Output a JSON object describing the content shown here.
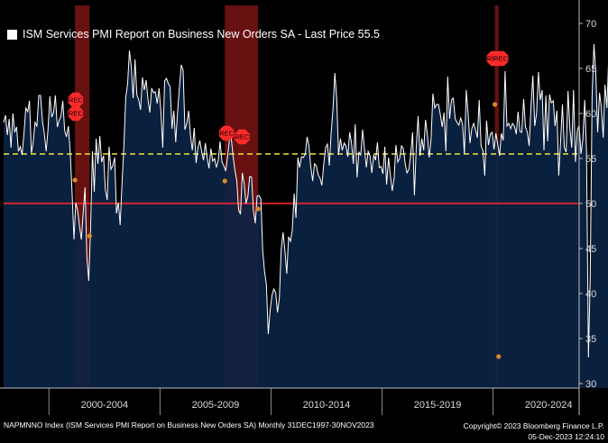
{
  "legend": {
    "label": "ISM Services PMI Report on Business New Orders SA - Last Price 55.5"
  },
  "footer": {
    "left": "NAPMNNO Index (ISM Services PMI Report on Business New Orders SA)  Monthly 31DEC1997-30NOV2023",
    "right_line1": "Copyright© 2023 Bloomberg Finance L.P.",
    "right_line2": "05-Dec-2023 12:24:10"
  },
  "colors": {
    "background": "#000000",
    "area": "#0b2346",
    "line": "#ffffff",
    "last_price": "#f2e634",
    "threshold": "#ff2a2a",
    "recession": "#7a1414",
    "rec_marker": "#ff2b2b",
    "dot": "#d7892a"
  },
  "chart_data": {
    "type": "line",
    "title": "ISM Services PMI Report on Business New Orders SA - Last Price 55.5",
    "x_start": "1997-12",
    "x_end": "2023-11",
    "ylim": [
      29.5,
      72
    ],
    "y_ticks": [
      30,
      35,
      40,
      45,
      50,
      55,
      60,
      65,
      70
    ],
    "x_tick_labels": [
      {
        "label": "2000-2004",
        "center": 2002.5
      },
      {
        "label": "2005-2009",
        "center": 2007.5
      },
      {
        "label": "2010-2014",
        "center": 2012.5
      },
      {
        "label": "2015-2019",
        "center": 2017.5
      },
      {
        "label": "2020-2024",
        "center": 2022.5
      }
    ],
    "x_separators": [
      2000,
      2005,
      2010,
      2015,
      2020
    ],
    "last_price": 55.5,
    "threshold": 50,
    "recessions": [
      {
        "start": 2001.17,
        "end": 2001.83
      },
      {
        "start": 2007.92,
        "end": 2009.42
      },
      {
        "start": 2020.08,
        "end": 2020.25
      }
    ],
    "rec_markers": [
      {
        "x": 2001.2,
        "y": 61.5,
        "label": "REC"
      },
      {
        "x": 2001.2,
        "y": 60.0,
        "label": "REC"
      },
      {
        "x": 2008.0,
        "y": 57.8,
        "label": "REC"
      },
      {
        "x": 2008.7,
        "y": 57.4,
        "label": "REC"
      },
      {
        "x": 2020.05,
        "y": 66.1,
        "label": "REC"
      },
      {
        "x": 2020.35,
        "y": 66.1,
        "label": "REC"
      }
    ],
    "recession_dots": [
      {
        "x": 2001.17,
        "y": 52.6
      },
      {
        "x": 2001.83,
        "y": 46.4
      },
      {
        "x": 2007.92,
        "y": 52.5
      },
      {
        "x": 2009.42,
        "y": 49.4
      },
      {
        "x": 2020.08,
        "y": 61.0
      },
      {
        "x": 2020.25,
        "y": 33.0
      }
    ],
    "series": [
      {
        "name": "NAPMNNO Index",
        "monthly_values": [
          59.0,
          59.8,
          57.6,
          59.4,
          56.2,
          60.0,
          57.9,
          58.5,
          55.8,
          56.3,
          55.4,
          57.8,
          60.6,
          60.2,
          61.4,
          55.6,
          56.8,
          59.0,
          58.6,
          62.0,
          62.0,
          59.1,
          57.8,
          55.8,
          58.2,
          61.9,
          59.6,
          60.1,
          62.0,
          58.5,
          59.2,
          59.7,
          61.4,
          58.1,
          57.4,
          58.6,
          55.6,
          51.2,
          46.0,
          50.1,
          49.2,
          47.5,
          46.0,
          48.9,
          51.8,
          44.0,
          41.4,
          47.2,
          55.8,
          51.3,
          57.2,
          54.4,
          57.5,
          54.6,
          55.3,
          51.5,
          50.4,
          56.3,
          53.8,
          54.2,
          55.1,
          48.9,
          50.1,
          47.6,
          52.3,
          56.3,
          61.8,
          63.2,
          67.0,
          65.2,
          61.7,
          66.0,
          62.1,
          61.5,
          60.4,
          64.0,
          62.6,
          63.7,
          61.6,
          60.1,
          62.8,
          62.3,
          62.4,
          61.1,
          62.8,
          60.2,
          56.2,
          63.6,
          63.9,
          63.3,
          63.0,
          58.3,
          60.3,
          56.8,
          60.1,
          62.9,
          65.4,
          64.8,
          58.2,
          58.9,
          60.3,
          57.5,
          55.9,
          58.4,
          54.5,
          56.2,
          57.0,
          55.8,
          54.8,
          56.7,
          55.1,
          53.9,
          56.1,
          54.7,
          55.0,
          54.0,
          54.8,
          56.9,
          54.6,
          54.2,
          53.6,
          55.1,
          57.0,
          57.3,
          55.2,
          53.7,
          52.5,
          49.3,
          48.8,
          53.4,
          52.2,
          50.0,
          50.8,
          53.0,
          52.9,
          49.2,
          47.8,
          50.8,
          50.9,
          50.5,
          44.8,
          42.4,
          41.0,
          35.5,
          38.1,
          39.8,
          40.5,
          40.1,
          37.9,
          39.5,
          44.9,
          46.8,
          44.8,
          42.2,
          46.3,
          45.8,
          47.0,
          51.1,
          48.4,
          55.1,
          54.0,
          55.2,
          55.1,
          55.5,
          57.4,
          56.4,
          54.1,
          52.5,
          54.4,
          54.2,
          53.2,
          52.8,
          52.0,
          54.4,
          56.2,
          56.6,
          54.2,
          57.8,
          60.6,
          64.5,
          61.6,
          55.4,
          57.2,
          55.9,
          56.7,
          56.4,
          55.2,
          57.9,
          56.7,
          54.4,
          58.8,
          52.9,
          55.7,
          55.4,
          58.2,
          56.1,
          54.0,
          55.8,
          55.3,
          53.4,
          55.4,
          54.8,
          56.8,
          54.0,
          54.1,
          53.3,
          56.3,
          52.1,
          55.1,
          53.1,
          51.4,
          52.8,
          56.5,
          54.6,
          55.0,
          56.4,
          56.1,
          54.4,
          53.4,
          53.8,
          55.5,
          57.9,
          50.9,
          56.4,
          59.7,
          55.3,
          57.2,
          55.9,
          59.3,
          57.6,
          55.1,
          57.2,
          62.2,
          60.6,
          61.0,
          61.0,
          59.9,
          58.5,
          60.1,
          55.8,
          64.1,
          59.4,
          61.5,
          61.7,
          59.4,
          59.0,
          58.7,
          59.5,
          58.8,
          55.5,
          62.6,
          60.0,
          56.7,
          58.3,
          58.9,
          58.2,
          57.3,
          61.5,
          56.4,
          55.9,
          53.1,
          59.2,
          56.5,
          57.7,
          57.9,
          56.0,
          57.8,
          56.6,
          55.3,
          57.8,
          57.0,
          64.7,
          58.6,
          58.9,
          58.3,
          58.9,
          58.6,
          57.7,
          60.2,
          58.0,
          57.9,
          61.6,
          58.5,
          57.9,
          56.4,
          60.9,
          64.2,
          58.6,
          60.0,
          64.6,
          61.5,
          62.6,
          55.9,
          62.0,
          56.9,
          62.1,
          61.2,
          61.4,
          58.6,
          60.3,
          53.1,
          57.0,
          61.0,
          56.2,
          55.7,
          62.5,
          58.4,
          56.2,
          62.6,
          54.6,
          58.0,
          58.7,
          55.5,
          57.1,
          61.5,
          55.8,
          32.9,
          41.9,
          62.0,
          67.7,
          64.5,
          57.9,
          62.3,
          60.7,
          57.3,
          63.2,
          60.6,
          66.4,
          65.4,
          67.2,
          63.2,
          61.7,
          63.5,
          62.9,
          64.5,
          65.0,
          69.3,
          65.1,
          60.9,
          59.9,
          57.3,
          57.4,
          54.5,
          61.6,
          60.6,
          56.5,
          56.9,
          60.9,
          56.1,
          60.4,
          55.3,
          58.7,
          55.5,
          53.6,
          56.5,
          54.7,
          60.1,
          62.0,
          56.1,
          45.2,
          62.6,
          52.2,
          52.2,
          56.1,
          56.1,
          52.9,
          57.5,
          55.0,
          51.9,
          55.5
        ]
      }
    ]
  }
}
